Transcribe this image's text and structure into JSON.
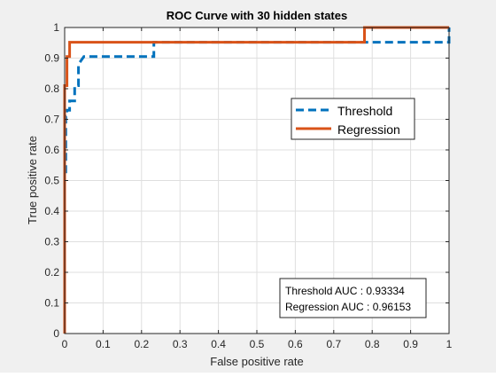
{
  "chart_data": {
    "type": "line",
    "title": "ROC Curve with 30 hidden states",
    "xlabel": "False positive rate",
    "ylabel": "True positive rate",
    "xlim": [
      0,
      1
    ],
    "ylim": [
      0,
      1
    ],
    "xticks": [
      "0",
      "0.1",
      "0.2",
      "0.3",
      "0.4",
      "0.5",
      "0.6",
      "0.7",
      "0.8",
      "0.9",
      "1"
    ],
    "yticks": [
      "0",
      "0.1",
      "0.2",
      "0.3",
      "0.4",
      "0.5",
      "0.6",
      "0.7",
      "0.8",
      "0.9",
      "1"
    ],
    "grid": true,
    "legend_position": "upper-right",
    "series": [
      {
        "name": "Threshold",
        "style": "dashed",
        "color": "#0072BD",
        "x": [
          0,
          0,
          0.003,
          0.003,
          0.006,
          0.006,
          0.013,
          0.013,
          0.026,
          0.026,
          0.036,
          0.036,
          0.05,
          0.232,
          0.232,
          0.78,
          0.78,
          1.0,
          1.0
        ],
        "y": [
          0,
          0.52,
          0.52,
          0.71,
          0.71,
          0.73,
          0.73,
          0.76,
          0.76,
          0.81,
          0.81,
          0.88,
          0.905,
          0.905,
          0.952,
          0.952,
          0.952,
          0.952,
          1.0
        ]
      },
      {
        "name": "Regression",
        "style": "solid",
        "color": "#D95319",
        "x": [
          0,
          0,
          0.006,
          0.006,
          0.013,
          0.013,
          0.78,
          0.78,
          1.0
        ],
        "y": [
          0,
          0.81,
          0.81,
          0.905,
          0.905,
          0.952,
          0.952,
          1.0,
          1.0
        ]
      }
    ],
    "annotation": {
      "lines": [
        "Threshold AUC : 0.93334",
        "Regression AUC : 0.96153"
      ]
    }
  }
}
